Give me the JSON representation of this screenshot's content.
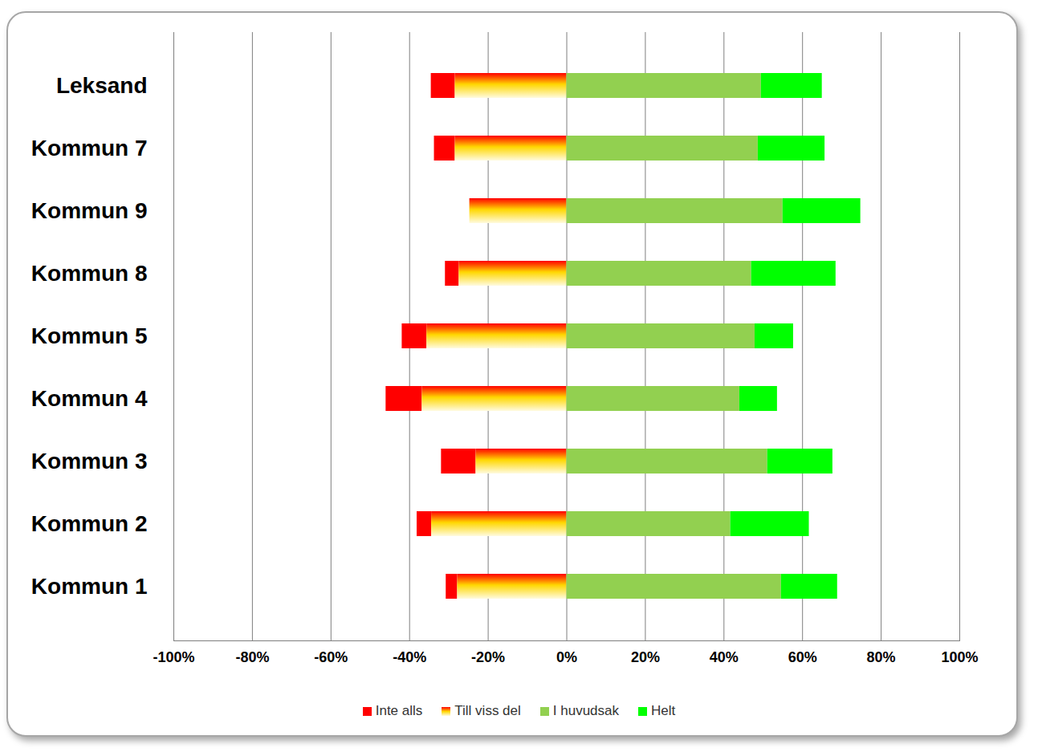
{
  "chart_data": {
    "type": "bar",
    "orientation": "horizontal",
    "stacked": true,
    "grid": true,
    "legend": "bottom",
    "categories": [
      "Leksand",
      "Kommun 7",
      "Kommun 9",
      "Kommun 8",
      "Kommun 5",
      "Kommun 4",
      "Kommun 3",
      "Kommun 2",
      "Kommun 1"
    ],
    "series": [
      {
        "name": "Inte alls",
        "color": "#ff0000",
        "values": [
          -6.1,
          -5.3,
          0,
          -3.5,
          -6.3,
          -9.2,
          -8.8,
          -3.7,
          -2.9
        ]
      },
      {
        "name": "Till viss del",
        "color": "#ffd700",
        "values": [
          -28.4,
          -28.4,
          -24.7,
          -27.4,
          -35.6,
          -36.8,
          -23.1,
          -34.4,
          -27.8
        ]
      },
      {
        "name": "I huvudsak",
        "color": "#92d050",
        "values": [
          49.5,
          48.7,
          55.0,
          47.0,
          47.9,
          44.0,
          51.1,
          41.7,
          54.6
        ]
      },
      {
        "name": "Helt",
        "color": "#00ff00",
        "values": [
          15.5,
          17.0,
          19.8,
          21.5,
          9.8,
          9.6,
          16.6,
          20.0,
          14.3
        ]
      }
    ],
    "xlim": [
      -100,
      100
    ],
    "xticks": [
      {
        "value": -100,
        "label": "-100%"
      },
      {
        "value": -80,
        "label": "-80%"
      },
      {
        "value": -60,
        "label": "-60%"
      },
      {
        "value": -40,
        "label": "-40%"
      },
      {
        "value": -20,
        "label": "-20%"
      },
      {
        "value": 0,
        "label": "0%"
      },
      {
        "value": 20,
        "label": "20%"
      },
      {
        "value": 40,
        "label": "40%"
      },
      {
        "value": 60,
        "label": "60%"
      },
      {
        "value": 80,
        "label": "80%"
      },
      {
        "value": 100,
        "label": "100%"
      }
    ]
  }
}
